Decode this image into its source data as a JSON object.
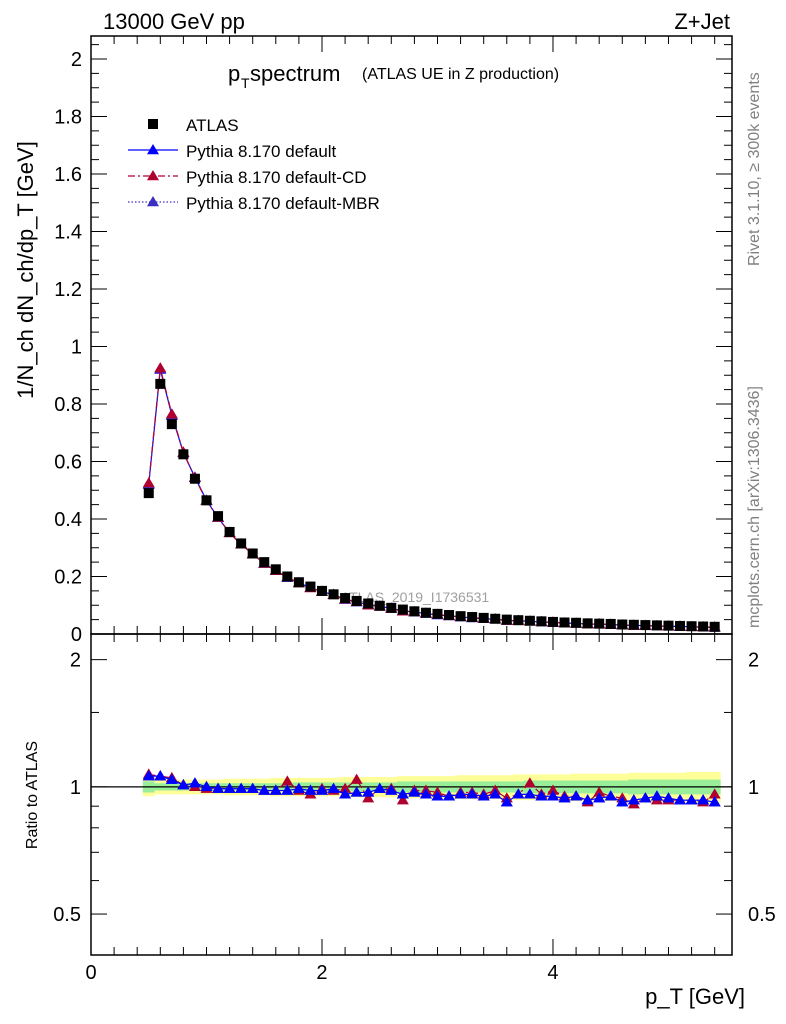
{
  "header": {
    "energy_label": "13000 GeV pp",
    "process_label": "Z+Jet",
    "side_rivet": "Rivet 3.1.10, ≥ 300k events",
    "side_mcplots": "mcplots.cern.ch [arXiv:1306.3436]",
    "watermark": "ATLAS_2019_I1736531"
  },
  "chart_data": [
    {
      "type": "scatter",
      "title_main": "p",
      "title_sub": "T",
      "title_rest": " spectrum",
      "title_note": "(ATLAS UE in Z production)",
      "ylabel": "1/N_ch dN_ch/dp_T [GeV]",
      "ylim": [
        0,
        2.08
      ],
      "yticks": [
        0,
        0.2,
        0.4,
        0.6,
        0.8,
        1,
        1.2,
        1.4,
        1.6,
        1.8,
        2
      ],
      "ytick_labels": [
        "0",
        "0.2",
        "0.4",
        "0.6",
        "0.8",
        "1",
        "1.2",
        "1.4",
        "1.6",
        "1.8",
        "2"
      ],
      "x": [
        0.5,
        0.6,
        0.7,
        0.8,
        0.9,
        1.0,
        1.1,
        1.2,
        1.3,
        1.4,
        1.5,
        1.6,
        1.7,
        1.8,
        1.9,
        2.0,
        2.1,
        2.2,
        2.3,
        2.4,
        2.5,
        2.6,
        2.7,
        2.8,
        2.9,
        3.0,
        3.1,
        3.2,
        3.3,
        3.4,
        3.5,
        3.6,
        3.7,
        3.8,
        3.9,
        4.0,
        4.1,
        4.2,
        4.3,
        4.4,
        4.5,
        4.6,
        4.7,
        4.8,
        4.9,
        5.0,
        5.1,
        5.2,
        5.3,
        5.4
      ],
      "series": [
        {
          "name": "ATLAS",
          "color": "#000000",
          "marker": "square",
          "values": [
            0.49,
            0.87,
            0.73,
            0.625,
            0.54,
            0.465,
            0.41,
            0.355,
            0.315,
            0.28,
            0.25,
            0.225,
            0.2,
            0.18,
            0.165,
            0.15,
            0.138,
            0.125,
            0.115,
            0.106,
            0.098,
            0.091,
            0.085,
            0.079,
            0.074,
            0.07,
            0.066,
            0.062,
            0.059,
            0.056,
            0.053,
            0.05,
            0.048,
            0.046,
            0.044,
            0.042,
            0.04,
            0.039,
            0.037,
            0.036,
            0.035,
            0.033,
            0.032,
            0.031,
            0.03,
            0.029,
            0.028,
            0.027,
            0.026,
            0.025
          ]
        },
        {
          "name": "Pythia 8.170 default",
          "color": "#0000ff",
          "marker": "triangle",
          "line": "solid",
          "values": [
            0.52,
            0.92,
            0.76,
            0.63,
            0.545,
            0.465,
            0.405,
            0.352,
            0.312,
            0.278,
            0.245,
            0.221,
            0.196,
            0.178,
            0.161,
            0.147,
            0.137,
            0.12,
            0.111,
            0.103,
            0.097,
            0.089,
            0.081,
            0.076,
            0.071,
            0.066,
            0.063,
            0.059,
            0.056,
            0.053,
            0.051,
            0.047,
            0.046,
            0.044,
            0.042,
            0.04,
            0.038,
            0.037,
            0.035,
            0.034,
            0.033,
            0.031,
            0.03,
            0.029,
            0.028,
            0.027,
            0.026,
            0.025,
            0.024,
            0.023
          ]
        },
        {
          "name": "Pythia 8.170 default-CD",
          "color": "#b00030",
          "marker": "triangle",
          "line": "dashdot",
          "values": [
            0.525,
            0.925,
            0.765,
            0.632,
            0.543,
            0.463,
            0.405,
            0.351,
            0.312,
            0.278,
            0.245,
            0.22,
            0.198,
            0.177,
            0.16,
            0.148,
            0.136,
            0.121,
            0.112,
            0.1,
            0.096,
            0.088,
            0.079,
            0.077,
            0.072,
            0.068,
            0.063,
            0.06,
            0.057,
            0.054,
            0.052,
            0.047,
            0.046,
            0.045,
            0.042,
            0.041,
            0.038,
            0.037,
            0.034,
            0.035,
            0.033,
            0.031,
            0.029,
            0.029,
            0.028,
            0.027,
            0.026,
            0.025,
            0.024,
            0.024
          ]
        },
        {
          "name": "Pythia 8.170 default-MBR",
          "color": "#3a2fc0",
          "marker": "triangle",
          "line": "dotted",
          "values": [
            0.522,
            0.922,
            0.762,
            0.631,
            0.544,
            0.464,
            0.405,
            0.352,
            0.312,
            0.278,
            0.245,
            0.221,
            0.197,
            0.178,
            0.161,
            0.147,
            0.137,
            0.12,
            0.111,
            0.102,
            0.097,
            0.089,
            0.08,
            0.076,
            0.071,
            0.067,
            0.063,
            0.059,
            0.056,
            0.053,
            0.051,
            0.047,
            0.046,
            0.044,
            0.042,
            0.04,
            0.038,
            0.037,
            0.035,
            0.034,
            0.033,
            0.031,
            0.03,
            0.029,
            0.028,
            0.027,
            0.026,
            0.025,
            0.024,
            0.023
          ]
        }
      ]
    },
    {
      "type": "scatter",
      "ylabel": "Ratio to ATLAS",
      "xlabel": "p_T [GeV]",
      "xlim": [
        0,
        5.55
      ],
      "ylim_log": [
        0.4,
        2.3
      ],
      "yticks": [
        0.5,
        1,
        2
      ],
      "ytick_labels": [
        "0.5",
        "1",
        "2"
      ],
      "xticks": [
        0,
        2,
        4
      ],
      "xtick_labels": [
        "0",
        "2",
        "4"
      ],
      "x": [
        0.5,
        0.6,
        0.7,
        0.8,
        0.9,
        1.0,
        1.1,
        1.2,
        1.3,
        1.4,
        1.5,
        1.6,
        1.7,
        1.8,
        1.9,
        2.0,
        2.1,
        2.2,
        2.3,
        2.4,
        2.5,
        2.6,
        2.7,
        2.8,
        2.9,
        3.0,
        3.1,
        3.2,
        3.3,
        3.4,
        3.5,
        3.6,
        3.7,
        3.8,
        3.9,
        4.0,
        4.1,
        4.2,
        4.3,
        4.4,
        4.5,
        4.6,
        4.7,
        4.8,
        4.9,
        5.0,
        5.1,
        5.2,
        5.3,
        5.4
      ],
      "band_inner": [
        0.03,
        0.02,
        0.02,
        0.02,
        0.02,
        0.02,
        0.02,
        0.02,
        0.02,
        0.02,
        0.02,
        0.02,
        0.02,
        0.025,
        0.025,
        0.025,
        0.025,
        0.025,
        0.025,
        0.025,
        0.025,
        0.025,
        0.03,
        0.03,
        0.03,
        0.03,
        0.03,
        0.03,
        0.03,
        0.03,
        0.03,
        0.03,
        0.03,
        0.035,
        0.035,
        0.035,
        0.035,
        0.035,
        0.035,
        0.035,
        0.035,
        0.035,
        0.04,
        0.04,
        0.04,
        0.04,
        0.04,
        0.04,
        0.04,
        0.04
      ],
      "band_outer": [
        0.05,
        0.04,
        0.04,
        0.04,
        0.04,
        0.04,
        0.04,
        0.045,
        0.045,
        0.045,
        0.045,
        0.05,
        0.05,
        0.05,
        0.05,
        0.05,
        0.05,
        0.055,
        0.055,
        0.055,
        0.055,
        0.055,
        0.06,
        0.06,
        0.06,
        0.06,
        0.06,
        0.065,
        0.065,
        0.065,
        0.065,
        0.065,
        0.07,
        0.07,
        0.07,
        0.07,
        0.07,
        0.075,
        0.075,
        0.075,
        0.075,
        0.075,
        0.08,
        0.08,
        0.08,
        0.08,
        0.08,
        0.085,
        0.085,
        0.085
      ],
      "series": [
        {
          "name": "Pythia 8.170 default",
          "color": "#0000ff",
          "line": "solid",
          "values": [
            1.06,
            1.06,
            1.04,
            1.01,
            1.02,
            1.0,
            0.99,
            0.99,
            0.99,
            0.99,
            0.98,
            0.98,
            0.98,
            0.99,
            0.98,
            0.98,
            0.99,
            0.96,
            0.97,
            0.97,
            0.99,
            0.98,
            0.96,
            0.97,
            0.96,
            0.95,
            0.95,
            0.96,
            0.96,
            0.95,
            0.96,
            0.92,
            0.96,
            0.96,
            0.95,
            0.95,
            0.94,
            0.95,
            0.93,
            0.94,
            0.95,
            0.92,
            0.93,
            0.94,
            0.95,
            0.94,
            0.93,
            0.93,
            0.93,
            0.92
          ],
          "errors": [
            0,
            0,
            0,
            0,
            0,
            0,
            0,
            0,
            0,
            0,
            0,
            0,
            0,
            0,
            0,
            0,
            0,
            0,
            0,
            0,
            0,
            0,
            0,
            0,
            0,
            0,
            0,
            0,
            0,
            0,
            0,
            0,
            0,
            0,
            0,
            0,
            0,
            0,
            0,
            0,
            0,
            0,
            0,
            0,
            0,
            0,
            0,
            0,
            0,
            0
          ]
        },
        {
          "name": "Pythia 8.170 default-CD",
          "color": "#b00030",
          "line": "dashdot",
          "values": [
            1.07,
            1.06,
            1.05,
            1.01,
            1.0,
            0.99,
            0.99,
            0.99,
            0.99,
            0.99,
            0.98,
            0.98,
            1.03,
            0.98,
            0.96,
            0.99,
            0.98,
            0.99,
            1.04,
            0.94,
            0.99,
            0.99,
            0.93,
            0.98,
            0.98,
            0.97,
            0.95,
            0.97,
            0.97,
            0.96,
            0.98,
            0.94,
            0.96,
            1.02,
            0.96,
            0.98,
            0.95,
            0.95,
            0.92,
            0.97,
            0.95,
            0.94,
            0.91,
            0.94,
            0.93,
            0.93,
            0.93,
            0.93,
            0.92,
            0.96
          ],
          "errors": [
            0,
            0,
            0,
            0,
            0,
            0,
            0,
            0,
            0,
            0,
            0,
            0,
            0,
            0,
            0,
            0,
            0,
            0,
            0,
            0,
            0,
            0,
            0,
            0,
            0,
            0,
            0,
            0,
            0,
            0,
            0,
            0,
            0,
            0,
            0,
            0,
            0,
            0,
            0,
            0,
            0,
            0,
            0,
            0,
            0,
            0,
            0,
            0,
            0,
            0
          ]
        },
        {
          "name": "Pythia 8.170 default-MBR",
          "color": "#3a2fc0",
          "line": "dotted",
          "values": [
            1.06,
            1.06,
            1.04,
            1.01,
            1.02,
            1.0,
            0.99,
            0.99,
            0.99,
            0.99,
            0.98,
            0.98,
            0.98,
            0.99,
            0.98,
            0.98,
            0.99,
            0.96,
            0.97,
            0.97,
            0.99,
            0.98,
            0.96,
            0.97,
            0.96,
            0.95,
            0.95,
            0.96,
            0.96,
            0.95,
            0.96,
            0.92,
            0.96,
            0.96,
            0.95,
            0.95,
            0.94,
            0.95,
            0.93,
            0.94,
            0.95,
            0.92,
            0.93,
            0.94,
            0.95,
            0.94,
            0.93,
            0.93,
            0.93,
            0.92
          ],
          "errors": [
            0,
            0,
            0,
            0,
            0,
            0,
            0,
            0,
            0,
            0,
            0,
            0,
            0,
            0,
            0,
            0,
            0,
            0,
            0,
            0,
            0,
            0,
            0,
            0,
            0,
            0,
            0,
            0,
            0,
            0,
            0,
            0,
            0,
            0,
            0,
            0,
            0,
            0,
            0,
            0,
            0,
            0,
            0,
            0,
            0,
            0,
            0,
            0,
            0,
            0
          ]
        }
      ]
    }
  ]
}
